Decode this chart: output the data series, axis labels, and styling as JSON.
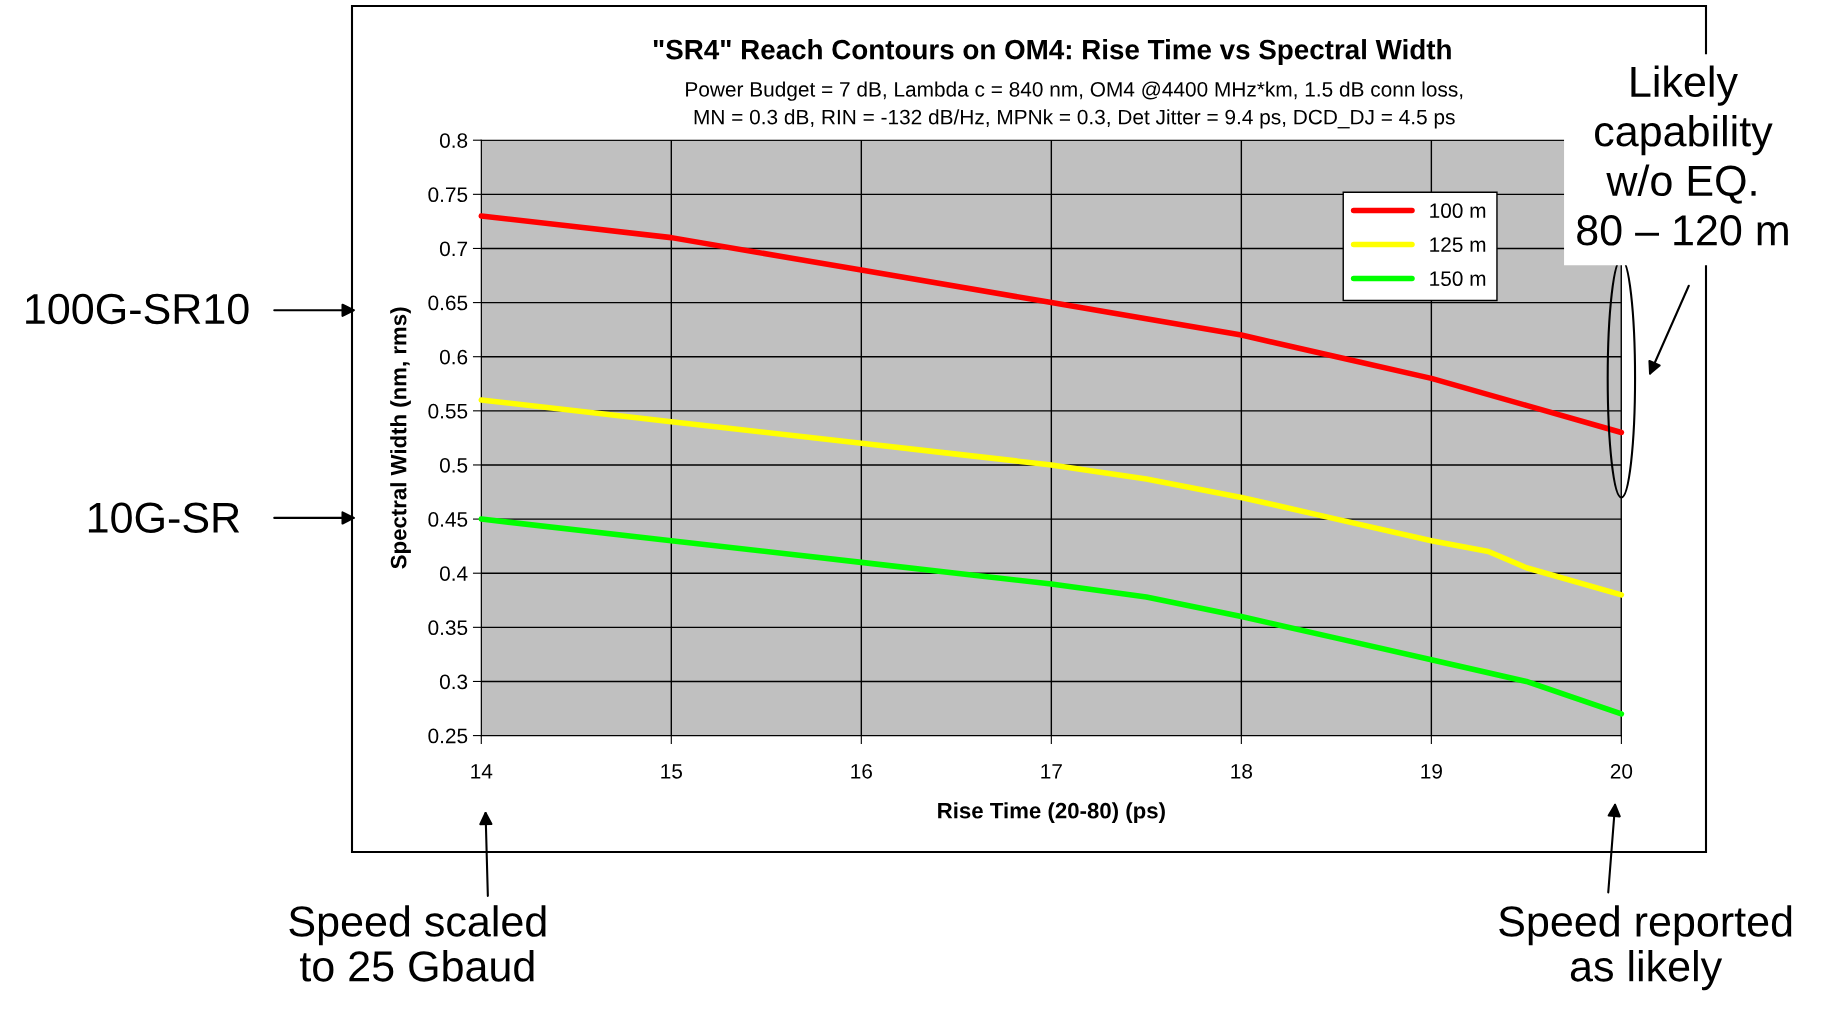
{
  "chart_data": {
    "type": "line",
    "title": "\"SR4\" Reach Contours on OM4: Rise Time vs Spectral Width",
    "subtitle": "Power Budget = 7 dB, Lambda c = 840 nm, OM4 @4400 MHz*km, 1.5 dB conn loss,\nMN = 0.3 dB, RIN = -132 dB/Hz, MPNk = 0.3, Det Jitter = 9.4 ps, DCD_DJ = 4.5 ps",
    "xlabel": "Rise Time (20-80) (ps)",
    "ylabel": "Spectral Width (nm, rms)",
    "xlim": [
      14,
      20
    ],
    "xticks": [
      14,
      15,
      16,
      17,
      18,
      19,
      20
    ],
    "ylim": [
      0.25,
      0.8
    ],
    "yticks": [
      0.25,
      0.3,
      0.35,
      0.4,
      0.45,
      0.5,
      0.55,
      0.6,
      0.65,
      0.7,
      0.75,
      0.8
    ],
    "grid": true,
    "legend": "top right",
    "marker": "none",
    "line_style": "solid",
    "series": [
      {
        "name": "100 m",
        "color": "#ff0000",
        "x": [
          14,
          14.5,
          15,
          16,
          17,
          17.5,
          18,
          18.5,
          19,
          19.5,
          20
        ],
        "values": [
          0.73,
          0.72,
          0.71,
          0.68,
          0.65,
          0.635,
          0.62,
          0.6,
          0.58,
          0.555,
          0.53
        ]
      },
      {
        "name": "125 m",
        "color": "#ffff00",
        "x": [
          14,
          15,
          16,
          16.5,
          17,
          17.5,
          18,
          18.5,
          19,
          19.3,
          19.5,
          20
        ],
        "values": [
          0.56,
          0.54,
          0.52,
          0.51,
          0.5,
          0.487,
          0.47,
          0.45,
          0.43,
          0.42,
          0.405,
          0.38
        ]
      },
      {
        "name": "150 m",
        "color": "#00ff00",
        "x": [
          14,
          15,
          16,
          16.5,
          17,
          17.5,
          18,
          18.5,
          19,
          19.5,
          20
        ],
        "values": [
          0.45,
          0.43,
          0.41,
          0.4,
          0.39,
          0.378,
          0.36,
          0.34,
          0.32,
          0.3,
          0.27
        ]
      }
    ],
    "annotations": [
      "100G-SR10",
      "10G-SR",
      "Speed scaled\nto 25 Gbaud",
      "Speed reported\nas likely",
      "Likely\ncapability\nw/o EQ.\n80 – 120 m"
    ]
  }
}
